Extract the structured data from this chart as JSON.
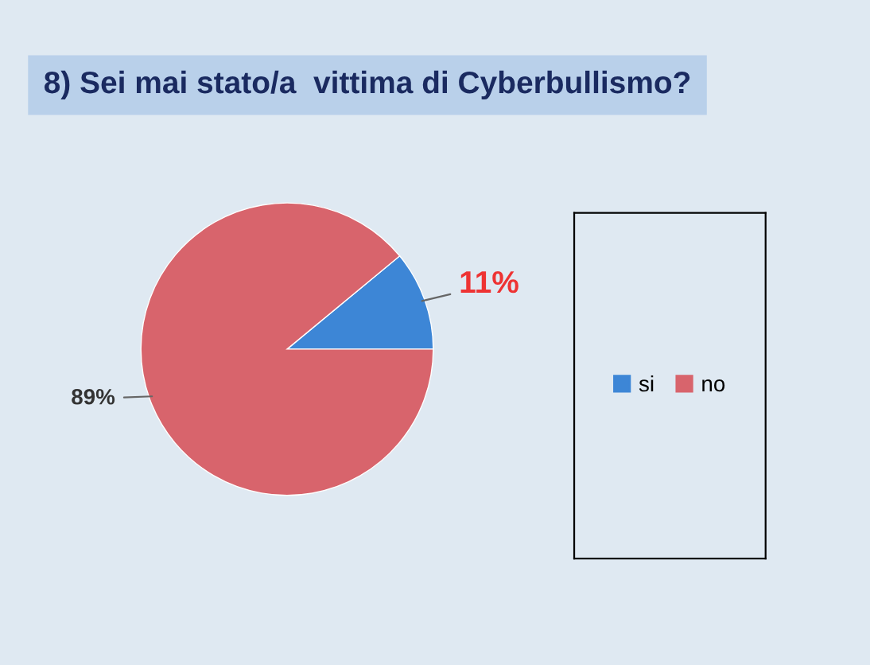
{
  "chart_data": {
    "type": "pie",
    "title": "8) Sei mai stato/a  vittima di Cyberbullismo?",
    "categories": [
      "si",
      "no"
    ],
    "values": [
      11,
      89
    ],
    "colors": [
      "#3d86d6",
      "#d8646c"
    ],
    "value_labels": [
      "11%",
      "89%"
    ],
    "legend": "right"
  }
}
